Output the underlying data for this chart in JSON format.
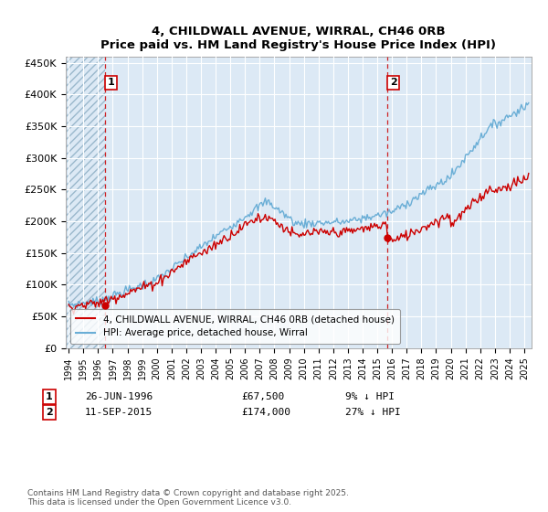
{
  "title_line1": "4, CHILDWALL AVENUE, WIRRAL, CH46 0RB",
  "title_line2": "Price paid vs. HM Land Registry's House Price Index (HPI)",
  "legend_line1": "4, CHILDWALL AVENUE, WIRRAL, CH46 0RB (detached house)",
  "legend_line2": "HPI: Average price, detached house, Wirral",
  "footer": "Contains HM Land Registry data © Crown copyright and database right 2025.\nThis data is licensed under the Open Government Licence v3.0.",
  "annotation1_label": "1",
  "annotation1_date": "26-JUN-1996",
  "annotation1_price": "£67,500",
  "annotation1_hpi": "9% ↓ HPI",
  "annotation2_label": "2",
  "annotation2_date": "11-SEP-2015",
  "annotation2_price": "£174,000",
  "annotation2_hpi": "27% ↓ HPI",
  "hpi_color": "#6aaed6",
  "price_color": "#cc0000",
  "vline_color": "#cc0000",
  "bg_color": "#dce9f5",
  "hatch_color": "#b0c8d8",
  "ylim": [
    0,
    460000
  ],
  "yticks": [
    0,
    50000,
    100000,
    150000,
    200000,
    250000,
    300000,
    350000,
    400000,
    450000
  ],
  "sale1_x": 1996.49,
  "sale1_y": 67500,
  "sale2_x": 2015.7,
  "sale2_y": 174000,
  "xmin": 1993.8,
  "xmax": 2025.5
}
